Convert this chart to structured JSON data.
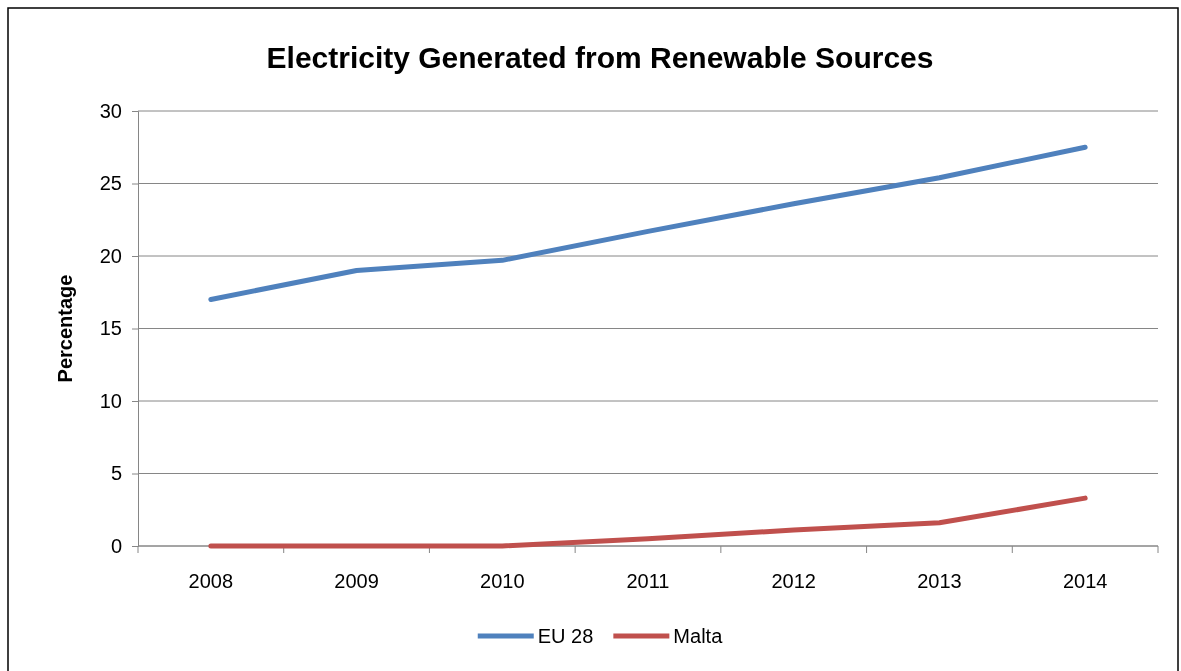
{
  "chart_data": {
    "type": "line",
    "title": "Electricity Generated from Renewable Sources",
    "ylabel": "Percentage",
    "categories": [
      "2008",
      "2009",
      "2010",
      "2011",
      "2012",
      "2013",
      "2014"
    ],
    "series": [
      {
        "name": "EU 28",
        "color": "#4f81bd",
        "values": [
          17.0,
          19.0,
          19.7,
          21.7,
          23.6,
          25.4,
          27.5
        ]
      },
      {
        "name": "Malta",
        "color": "#c0504d",
        "values": [
          0,
          0,
          0,
          0.5,
          1.1,
          1.6,
          3.3
        ]
      }
    ],
    "ylim": [
      0,
      30
    ],
    "yticks": [
      0,
      5,
      10,
      15,
      20,
      25,
      30
    ],
    "grid": "y",
    "legend": "bottom",
    "marker": "none",
    "line_style": "solid"
  }
}
